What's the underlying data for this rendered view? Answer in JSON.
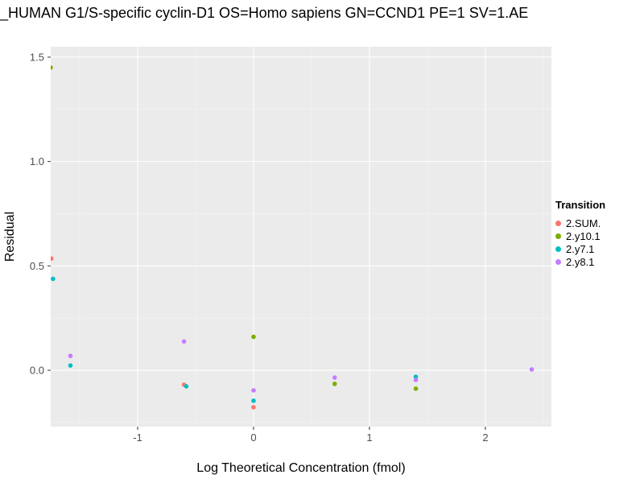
{
  "title": "_HUMAN G1/S-specific cyclin-D1 OS=Homo sapiens GN=CCND1 PE=1 SV=1.AE",
  "chart_data": {
    "type": "scatter",
    "title": "_HUMAN G1/S-specific cyclin-D1 OS=Homo sapiens GN=CCND1 PE=1 SV=1.AE",
    "xlabel": "Log Theoretical Concentration (fmol)",
    "ylabel": "Residual",
    "xlim": [
      -1.75,
      2.57
    ],
    "ylim": [
      -0.27,
      1.55
    ],
    "x_ticks": [
      -1,
      0,
      1,
      2
    ],
    "x_tick_labels": [
      "-1",
      "0",
      "1",
      "2"
    ],
    "y_ticks": [
      0.0,
      0.5,
      1.0,
      1.5
    ],
    "y_tick_labels": [
      "0.0",
      "0.5",
      "1.0",
      "1.5"
    ],
    "x_minor_ticks": [
      -1.5,
      -0.5,
      0.5,
      1.5,
      2.5
    ],
    "y_minor_ticks": [
      -0.25,
      0.25,
      0.75,
      1.25
    ],
    "grid": true,
    "panel_bg": "#EBEBEB",
    "grid_major_color": "#FFFFFF",
    "grid_minor_color": "#F5F5F5",
    "tick_label_color": "#4D4D4D",
    "legend_title": "Transition",
    "legend_position": "right",
    "series": [
      {
        "name": "2.SUM.",
        "color": "#F8766D",
        "points": [
          [
            -1.745,
            0.535
          ],
          [
            -0.6,
            -0.069
          ],
          [
            0.0,
            -0.177
          ]
        ]
      },
      {
        "name": "2.y10.1",
        "color": "#7CAE00",
        "points": [
          [
            -1.75,
            1.45
          ],
          [
            0.0,
            0.16
          ],
          [
            0.7,
            -0.065
          ],
          [
            1.4,
            -0.088
          ]
        ]
      },
      {
        "name": "2.y7.1",
        "color": "#00BFC4",
        "points": [
          [
            -1.73,
            0.438
          ],
          [
            -1.58,
            0.023
          ],
          [
            -0.58,
            -0.077
          ],
          [
            0.0,
            -0.146
          ],
          [
            1.4,
            -0.031
          ]
        ]
      },
      {
        "name": "2.y8.1",
        "color": "#C77CFF",
        "points": [
          [
            -1.58,
            0.069
          ],
          [
            -0.6,
            0.138
          ],
          [
            0.0,
            -0.096
          ],
          [
            0.7,
            -0.035
          ],
          [
            1.4,
            -0.046
          ],
          [
            2.4,
            0.004
          ]
        ]
      }
    ]
  }
}
